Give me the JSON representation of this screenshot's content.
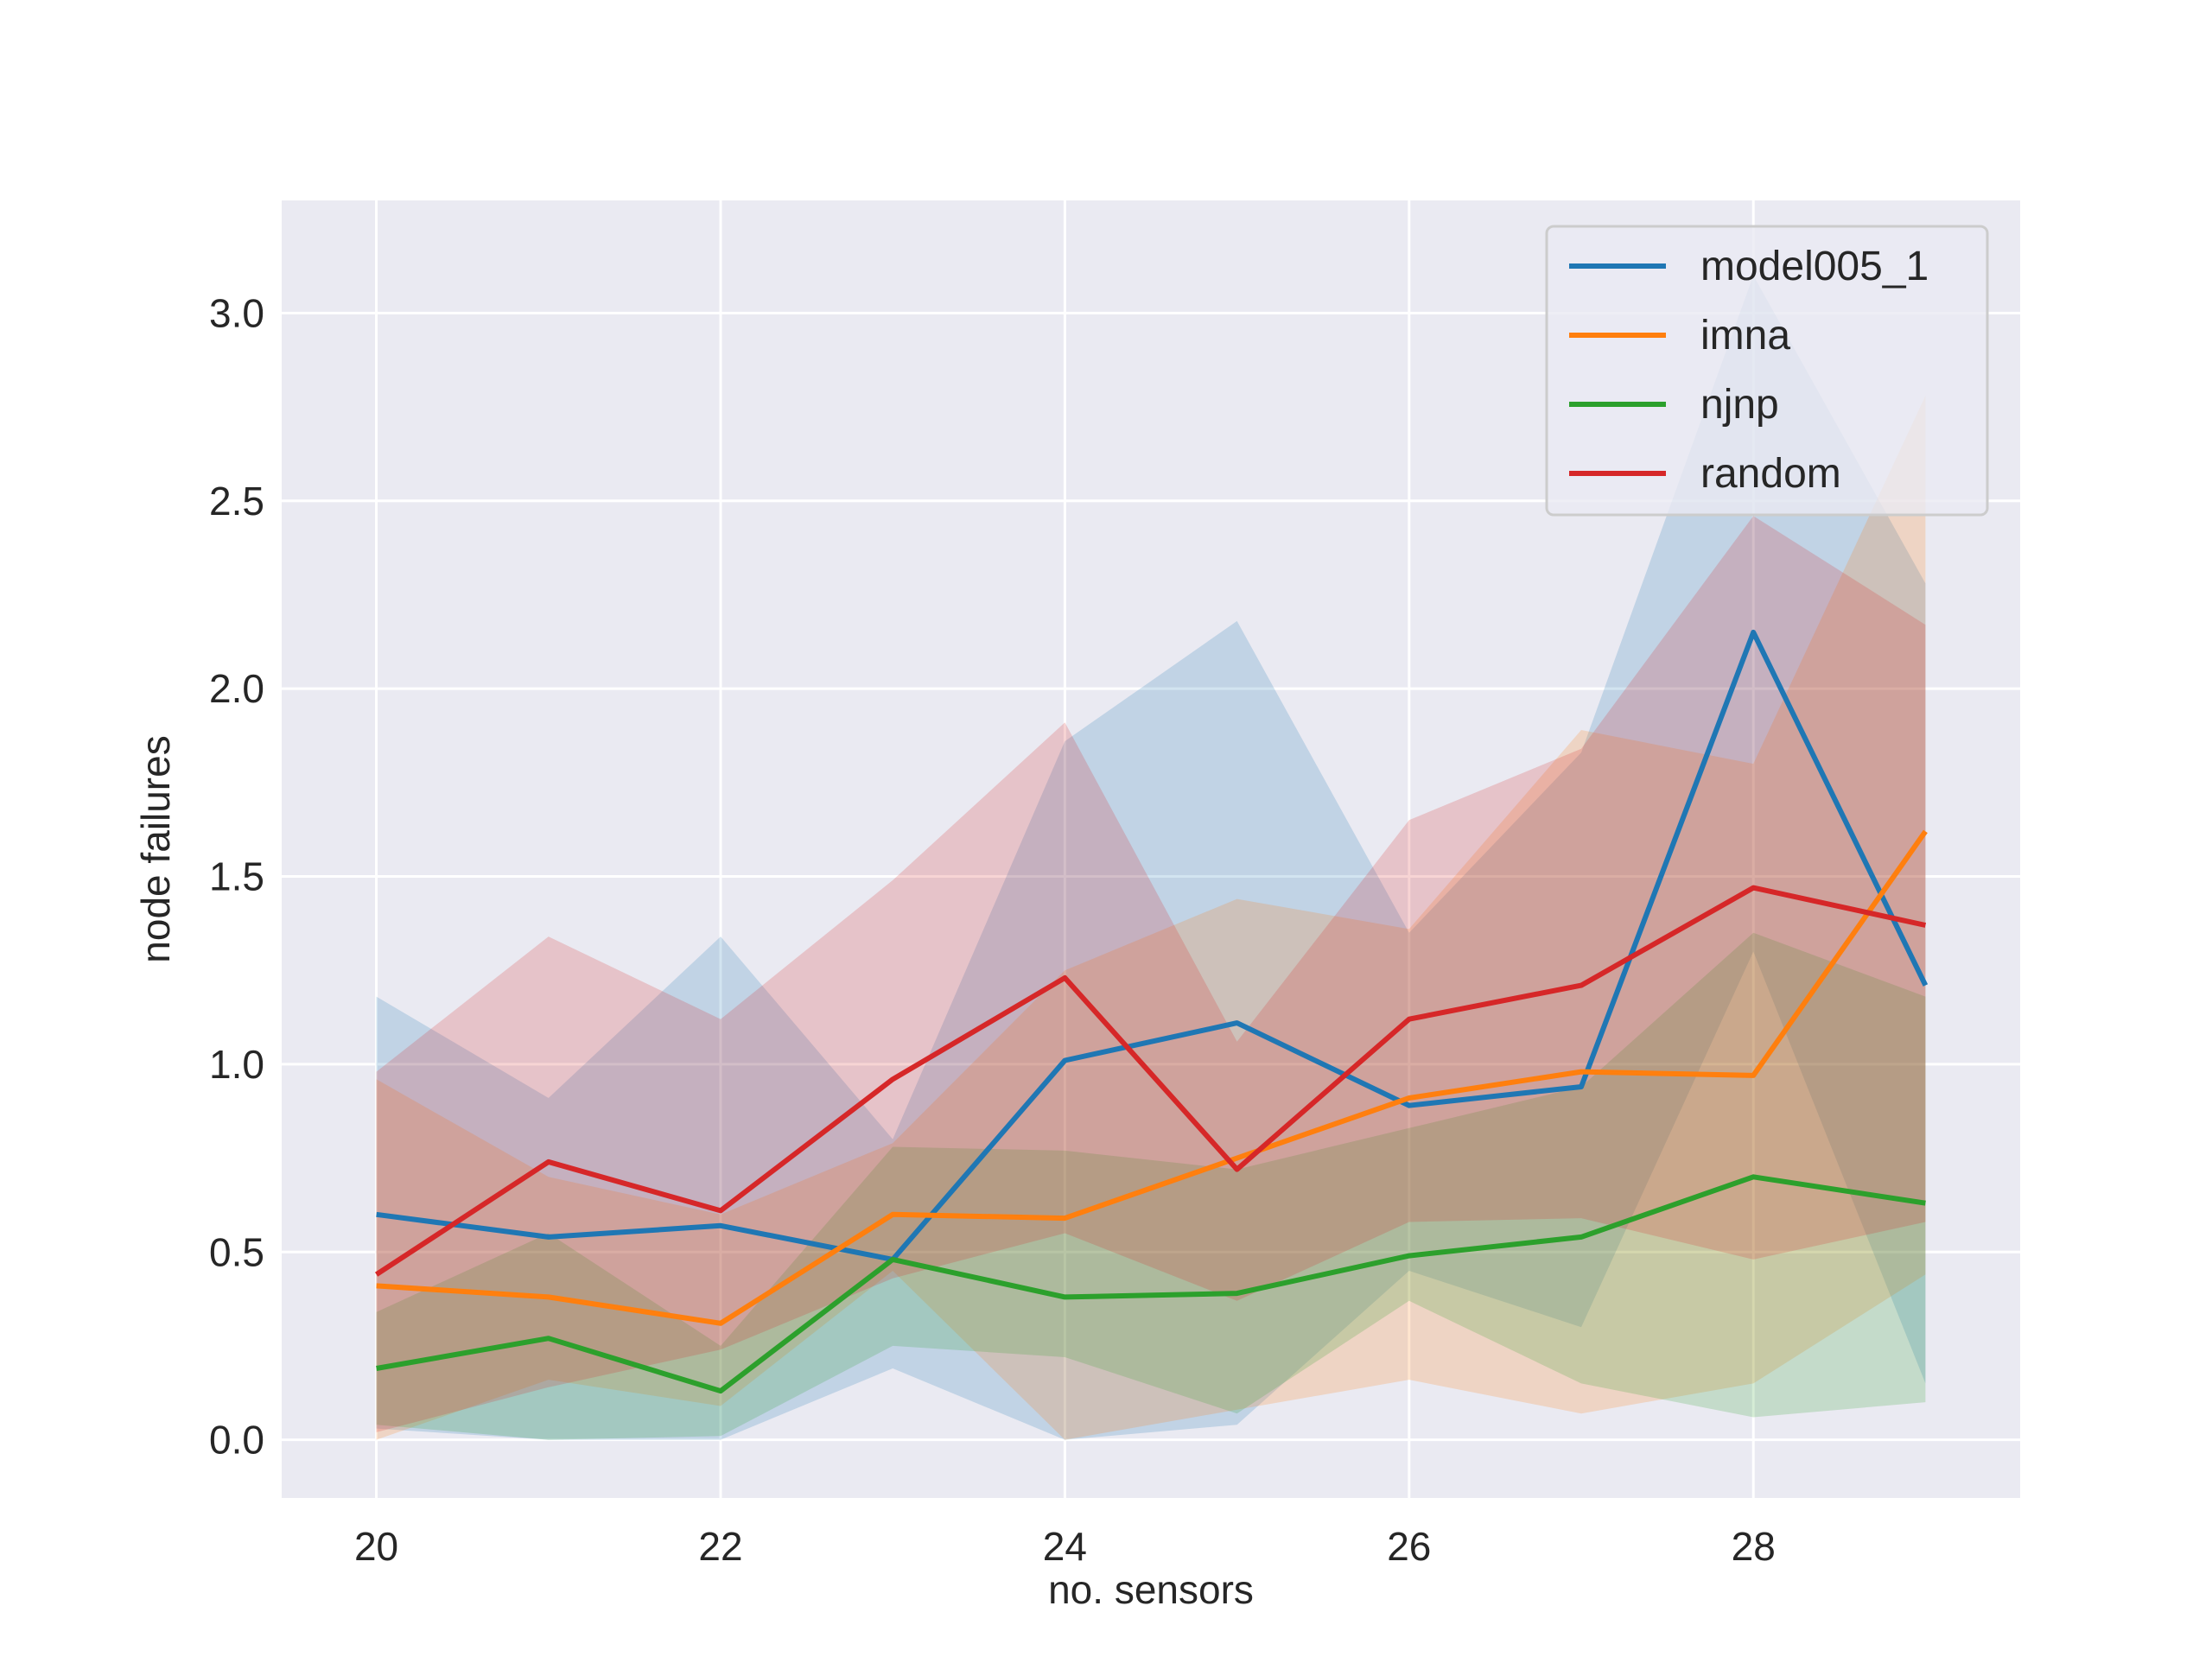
{
  "chart_data": {
    "type": "line",
    "title": "",
    "xlabel": "no. sensors",
    "ylabel": "node failures",
    "x": [
      20,
      21,
      22,
      23,
      24,
      25,
      26,
      27,
      28,
      29
    ],
    "xlim": [
      19.45,
      29.55
    ],
    "ylim": [
      -0.155,
      3.3
    ],
    "xticks": [
      20,
      22,
      24,
      26,
      28
    ],
    "xtick_labels": [
      "20",
      "22",
      "24",
      "26",
      "28"
    ],
    "yticks": [
      0.0,
      0.5,
      1.0,
      1.5,
      2.0,
      2.5,
      3.0
    ],
    "ytick_labels": [
      "0.0",
      "0.5",
      "1.0",
      "1.5",
      "2.0",
      "2.5",
      "3.0"
    ],
    "grid": true,
    "legend_position": "top-right",
    "background": "#eaeaf2",
    "series": [
      {
        "name": "model005_1",
        "color": "#1f77b4",
        "values": [
          0.6,
          0.54,
          0.57,
          0.48,
          1.01,
          1.11,
          0.89,
          0.94,
          2.15,
          1.21
        ],
        "lower": [
          0.03,
          0.0,
          0.0,
          0.19,
          0.0,
          0.04,
          0.45,
          0.3,
          1.3,
          0.15
        ],
        "upper": [
          1.18,
          0.91,
          1.34,
          0.8,
          1.86,
          2.18,
          1.35,
          1.83,
          3.1,
          2.28
        ]
      },
      {
        "name": "imna",
        "color": "#ff7f0e",
        "values": [
          0.41,
          0.38,
          0.31,
          0.6,
          0.59,
          0.75,
          0.91,
          0.98,
          0.97,
          1.62
        ],
        "lower": [
          0.0,
          0.16,
          0.09,
          0.45,
          0.0,
          0.08,
          0.16,
          0.07,
          0.15,
          0.44
        ],
        "upper": [
          0.96,
          0.7,
          0.6,
          0.79,
          1.25,
          1.44,
          1.36,
          1.89,
          1.8,
          2.78
        ]
      },
      {
        "name": "njnp",
        "color": "#2ca02c",
        "values": [
          0.19,
          0.27,
          0.13,
          0.48,
          0.38,
          0.39,
          0.49,
          0.54,
          0.7,
          0.63
        ],
        "lower": [
          0.04,
          0.0,
          0.01,
          0.25,
          0.22,
          0.07,
          0.37,
          0.15,
          0.06,
          0.1
        ],
        "upper": [
          0.34,
          0.55,
          0.25,
          0.78,
          0.77,
          0.72,
          0.83,
          0.94,
          1.35,
          1.18
        ]
      },
      {
        "name": "random",
        "color": "#d62728",
        "values": [
          0.44,
          0.74,
          0.61,
          0.96,
          1.23,
          0.72,
          1.12,
          1.21,
          1.47,
          1.37
        ],
        "lower": [
          0.02,
          0.14,
          0.24,
          0.43,
          0.55,
          0.37,
          0.58,
          0.59,
          0.48,
          0.58
        ],
        "upper": [
          0.98,
          1.34,
          1.12,
          1.49,
          1.91,
          1.06,
          1.65,
          1.84,
          2.46,
          2.17
        ]
      }
    ]
  }
}
